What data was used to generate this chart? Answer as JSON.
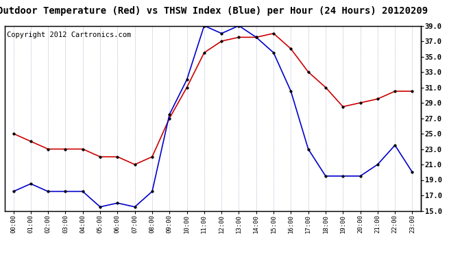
{
  "title": "Outdoor Temperature (Red) vs THSW Index (Blue) per Hour (24 Hours) 20120209",
  "copyright": "Copyright 2012 Cartronics.com",
  "hours": [
    "00:00",
    "01:00",
    "02:00",
    "03:00",
    "04:00",
    "05:00",
    "06:00",
    "07:00",
    "08:00",
    "09:00",
    "10:00",
    "11:00",
    "12:00",
    "13:00",
    "14:00",
    "15:00",
    "16:00",
    "17:00",
    "18:00",
    "19:00",
    "20:00",
    "21:00",
    "22:00",
    "23:00"
  ],
  "red_temp": [
    25.0,
    24.0,
    23.0,
    23.0,
    23.0,
    22.0,
    22.0,
    21.0,
    22.0,
    27.0,
    31.0,
    35.5,
    37.0,
    37.5,
    37.5,
    38.0,
    36.0,
    33.0,
    31.0,
    28.5,
    29.0,
    29.5,
    30.5,
    30.5
  ],
  "blue_thsw": [
    17.5,
    18.5,
    17.5,
    17.5,
    17.5,
    15.5,
    16.0,
    15.5,
    17.5,
    27.5,
    32.0,
    39.0,
    38.0,
    39.0,
    37.5,
    35.5,
    30.5,
    23.0,
    19.5,
    19.5,
    19.5,
    21.0,
    23.5,
    20.0
  ],
  "ylim": [
    15.0,
    39.0
  ],
  "yticks": [
    15.0,
    17.0,
    19.0,
    21.0,
    23.0,
    25.0,
    27.0,
    29.0,
    31.0,
    33.0,
    35.0,
    37.0,
    39.0
  ],
  "red_color": "#cc0000",
  "blue_color": "#0000cc",
  "bg_color": "#ffffff",
  "grid_color": "#8888bb",
  "title_fontsize": 10,
  "copyright_fontsize": 7.5
}
